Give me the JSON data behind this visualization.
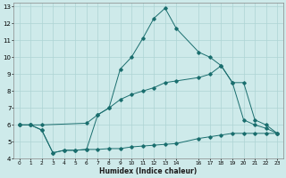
{
  "xlabel": "Humidex (Indice chaleur)",
  "bg_color": "#ceeaea",
  "grid_color": "#aed4d4",
  "line_color": "#1a6e6e",
  "xlim": [
    -0.5,
    23.5
  ],
  "ylim": [
    4,
    13.2
  ],
  "xticks": [
    0,
    1,
    2,
    3,
    4,
    5,
    6,
    7,
    8,
    9,
    10,
    11,
    12,
    13,
    14,
    16,
    17,
    18,
    19,
    20,
    21,
    22,
    23
  ],
  "yticks": [
    4,
    5,
    6,
    7,
    8,
    9,
    10,
    11,
    12,
    13
  ],
  "line1_x": [
    0,
    1,
    2,
    3,
    4,
    5,
    6,
    7,
    8,
    9,
    10,
    11,
    12,
    13,
    14,
    16,
    17,
    18,
    19,
    20,
    21,
    22,
    23
  ],
  "line1_y": [
    6.0,
    6.0,
    5.7,
    4.35,
    4.5,
    4.5,
    4.55,
    4.55,
    4.6,
    4.6,
    4.7,
    4.75,
    4.8,
    4.85,
    4.9,
    5.2,
    5.3,
    5.4,
    5.5,
    5.5,
    5.5,
    5.5,
    5.5
  ],
  "line2_x": [
    0,
    1,
    2,
    3,
    4,
    5,
    6,
    7,
    8,
    9,
    10,
    11,
    12,
    13,
    14,
    16,
    17,
    18,
    19,
    20,
    21,
    22,
    23
  ],
  "line2_y": [
    6.0,
    6.0,
    5.7,
    4.35,
    4.5,
    4.5,
    4.55,
    6.6,
    7.0,
    9.3,
    10.0,
    11.1,
    12.3,
    12.9,
    11.7,
    10.3,
    10.0,
    9.5,
    8.5,
    6.3,
    6.0,
    5.8,
    5.5
  ],
  "line3_x": [
    0,
    1,
    2,
    6,
    7,
    8,
    9,
    10,
    11,
    12,
    13,
    14,
    16,
    17,
    18,
    19,
    20,
    21,
    22,
    23
  ],
  "line3_y": [
    6.0,
    6.0,
    6.0,
    6.1,
    6.6,
    7.0,
    7.5,
    7.8,
    8.0,
    8.2,
    8.5,
    8.6,
    8.8,
    9.0,
    9.5,
    8.5,
    8.5,
    6.3,
    6.0,
    5.5
  ]
}
